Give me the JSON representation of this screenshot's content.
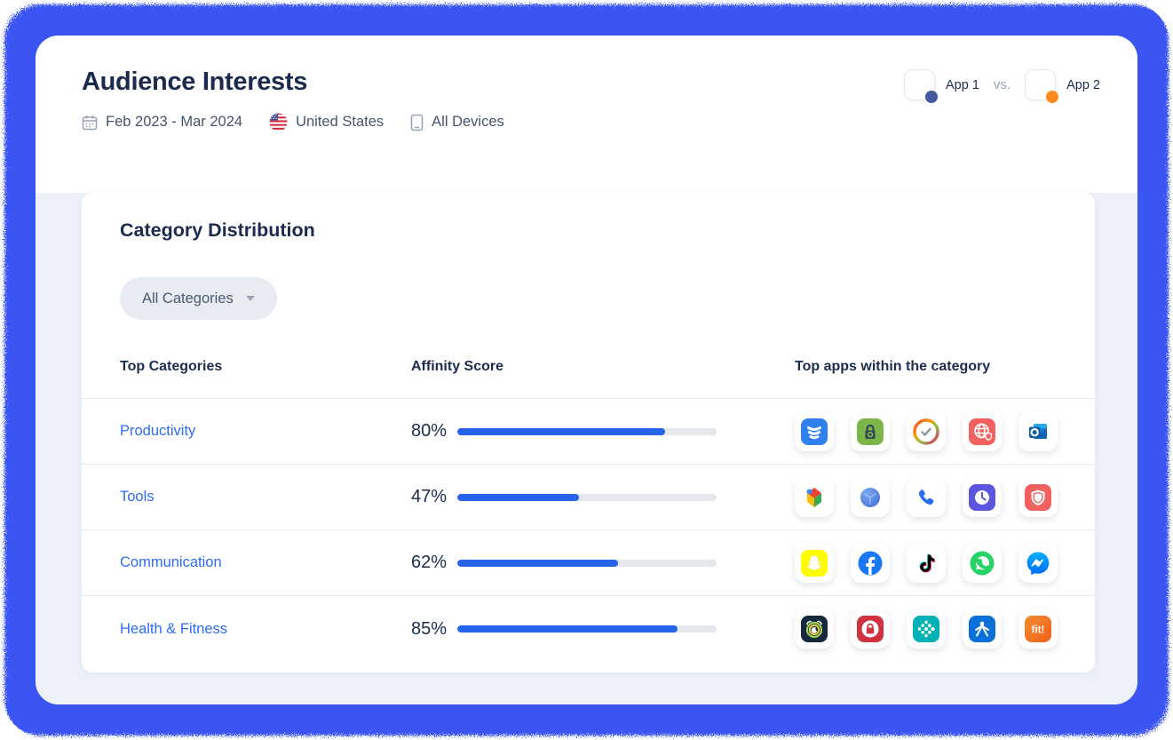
{
  "page": {
    "title": "Audience Interests",
    "date_range": "Feb 2023 - Mar 2024",
    "country": "United States",
    "devices": "All Devices"
  },
  "comparison": {
    "app1_label": "App 1",
    "vs_label": "vs.",
    "app2_label": "App 2",
    "app1_dot_color": "#46589f",
    "app2_dot_color": "#ff8a1f"
  },
  "card": {
    "title": "Category Distribution",
    "filter_label": "All Categories",
    "columns": [
      "Top Categories",
      "Affinity Score",
      "Top apps within the category"
    ],
    "rows": [
      {
        "category": "Productivity",
        "score": 80,
        "score_label": "80%",
        "apps": [
          "layered-shield-blue-app",
          "padlock-green-app",
          "timer-rainbow-ring-app",
          "globe-shield-red-app",
          "outlook-mail-app"
        ]
      },
      {
        "category": "Tools",
        "score": 47,
        "score_label": "47%",
        "apps": [
          "google-play-services-app",
          "clock-sphere-blue-app",
          "phone-dialer-app",
          "clock-purple-app",
          "shield-red-app"
        ]
      },
      {
        "category": "Communication",
        "score": 62,
        "score_label": "62%",
        "apps": [
          "snapchat-app",
          "facebook-app",
          "tiktok-app",
          "whatsapp-app",
          "messenger-app"
        ]
      },
      {
        "category": "Health & Fitness",
        "score": 85,
        "score_label": "85%",
        "apps": [
          "alarm-rings-app",
          "privacy-lock-red-app",
          "fitbit-app",
          "myfitnesspal-app",
          "fit-orange-app"
        ]
      }
    ]
  },
  "colors": {
    "frame_blue": "#3b55f2",
    "body_background": "#edf1f9",
    "link_blue": "#2e6bf6",
    "bar_fill": "#2563eb",
    "bar_track": "#e4e7ec",
    "heading_navy": "#1b2b4d"
  }
}
